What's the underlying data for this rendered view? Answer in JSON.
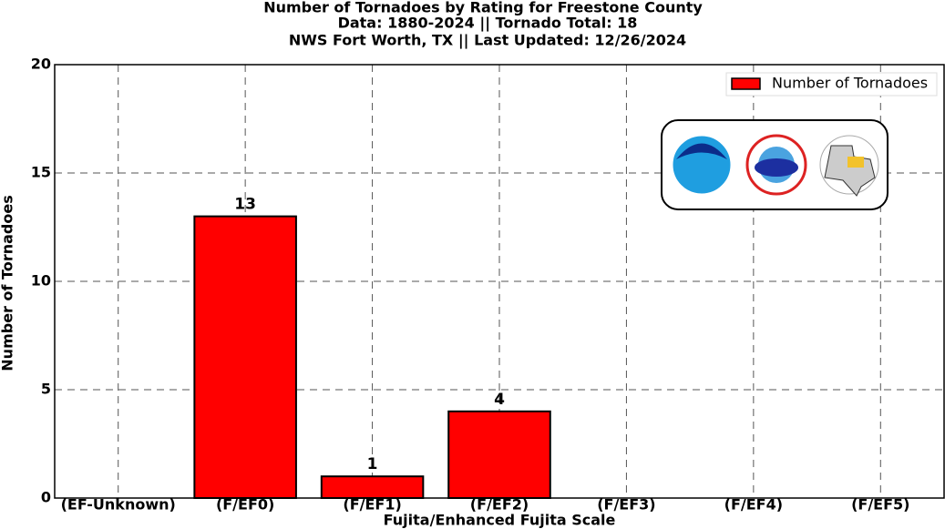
{
  "chart_data": {
    "type": "bar",
    "title": [
      "Number of Tornadoes by Rating for Freestone County",
      "Data: 1880-2024 || Tornado Total: 18",
      "NWS Fort Worth, TX || Last Updated: 12/26/2024"
    ],
    "xlabel": "Fujita/Enhanced Fujita Scale",
    "ylabel": "Number of Tornadoes",
    "categories": [
      "(EF-Unknown)",
      "(F/EF0)",
      "(F/EF1)",
      "(F/EF2)",
      "(F/EF3)",
      "(F/EF4)",
      "(F/EF5)"
    ],
    "series": [
      {
        "name": "Number of Tornadoes",
        "color": "#ff0000",
        "values": [
          0,
          13,
          1,
          4,
          0,
          0,
          0
        ]
      }
    ],
    "ylim": [
      0,
      20
    ],
    "yticks": [
      0,
      5,
      10,
      15,
      20
    ],
    "grid": true,
    "legend": "upper right",
    "data_labels": true
  }
}
